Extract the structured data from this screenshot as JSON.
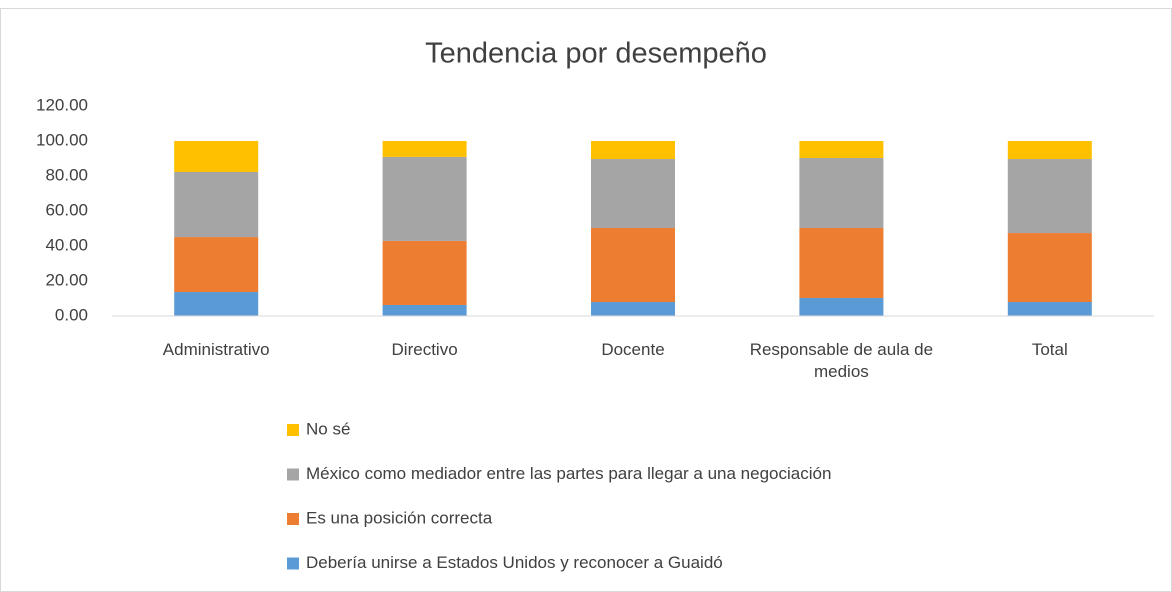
{
  "chart_data": {
    "type": "stacked_bar",
    "title": "Tendencia por desempeño",
    "categories": [
      "Administrativo",
      "Directivo",
      "Docente",
      "Responsable de aula de medios",
      "Total"
    ],
    "series": [
      {
        "name": "Debería unirse a Estados Unidos y reconocer a Guaidó",
        "color": "#5b9bd5",
        "values": [
          13.7,
          6.3,
          8.0,
          10.3,
          8.0
        ]
      },
      {
        "name": "Es una posición correcta",
        "color": "#ed7d31",
        "values": [
          31.4,
          36.6,
          42.3,
          40.0,
          39.4
        ]
      },
      {
        "name": "México como mediador entre las partes para llegar a una negociación",
        "color": "#a5a5a5",
        "values": [
          37.2,
          48.0,
          39.4,
          40.0,
          42.3
        ]
      },
      {
        "name": "No sé",
        "color": "#ffc000",
        "values": [
          17.7,
          9.1,
          10.3,
          9.7,
          10.3
        ]
      }
    ],
    "ylim": [
      0,
      120
    ],
    "yticks": [
      {
        "value": 0,
        "label": "0.00"
      },
      {
        "value": 20,
        "label": "20.00"
      },
      {
        "value": 40,
        "label": "40.00"
      },
      {
        "value": 60,
        "label": "60.00"
      },
      {
        "value": 80,
        "label": "80.00"
      },
      {
        "value": 100,
        "label": "100.00"
      },
      {
        "value": 120,
        "label": "120.00"
      }
    ],
    "grid": false
  }
}
